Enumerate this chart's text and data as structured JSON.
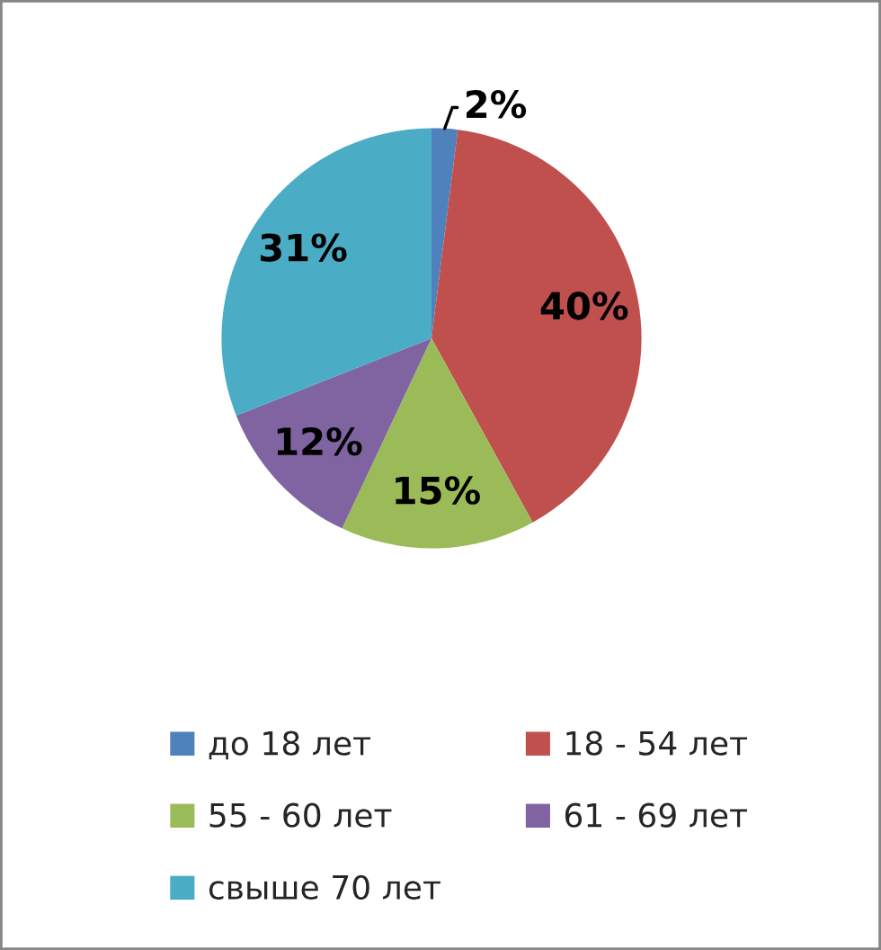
{
  "chart_data": {
    "type": "pie",
    "categories": [
      "до 18 лет",
      "18 - 54 лет",
      "55 - 60 лет",
      "61 - 69 лет",
      "свыше 70 лет"
    ],
    "values": [
      2,
      40,
      15,
      12,
      31
    ],
    "value_labels": [
      "2%",
      "40%",
      "15%",
      "12%",
      "31%"
    ],
    "colors": [
      "#4f81bd",
      "#c0504d",
      "#9bbb59",
      "#8064a2",
      "#4bacc6"
    ],
    "legend": "bottom"
  }
}
